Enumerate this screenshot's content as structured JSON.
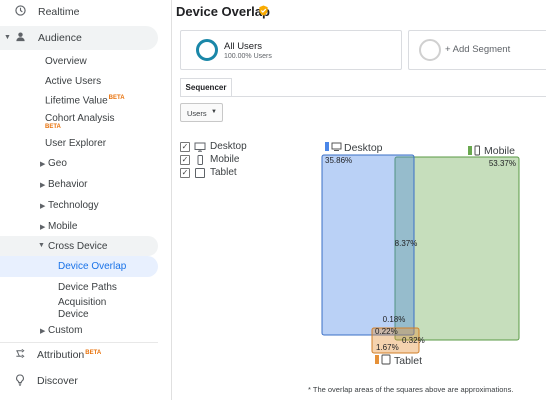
{
  "sidebar": {
    "items": [
      {
        "label": "Realtime",
        "icon": "clock-icon"
      },
      {
        "label": "Audience",
        "icon": "person-icon"
      },
      {
        "label": "Overview"
      },
      {
        "label": "Active Users"
      },
      {
        "label": "Lifetime Value",
        "badge": "BETA"
      },
      {
        "label": "Cohort Analysis",
        "badge": "BETA"
      },
      {
        "label": "User Explorer"
      },
      {
        "label": "Geo"
      },
      {
        "label": "Behavior"
      },
      {
        "label": "Technology"
      },
      {
        "label": "Mobile"
      },
      {
        "label": "Cross Device"
      },
      {
        "label": "Device Overlap"
      },
      {
        "label": "Device Paths"
      },
      {
        "label": "Acquisition Device"
      },
      {
        "label": "Custom"
      },
      {
        "label": "Attribution",
        "badge": "BETA",
        "icon": "attribution-icon"
      },
      {
        "label": "Discover",
        "icon": "lightbulb-icon"
      }
    ]
  },
  "header": {
    "title": "Device Overlap"
  },
  "segments": {
    "all_users": {
      "name": "All Users",
      "pct": "100.00% Users"
    },
    "add": {
      "label": "+ Add Segment"
    }
  },
  "tabs": {
    "sequencer": "Sequencer"
  },
  "metric_dropdown": {
    "value": "Users"
  },
  "devices": [
    {
      "label": "Desktop",
      "checked": true
    },
    {
      "label": "Mobile",
      "checked": true
    },
    {
      "label": "Tablet",
      "checked": true
    }
  ],
  "venn": {
    "desktop": {
      "label": "Desktop",
      "pct": "35.86%",
      "color": "#4a86e8"
    },
    "mobile": {
      "label": "Mobile",
      "pct": "53.37%",
      "color": "#6aa84f"
    },
    "tablet": {
      "label": "Tablet",
      "pct": "1.67%",
      "color": "#e69138"
    },
    "overlaps": {
      "desktop_mobile": "8.37%",
      "desktop_mobile_tablet": "0.18%",
      "desktop_tablet": "0.22%",
      "mobile_tablet": "0.32%"
    }
  },
  "footnote": "* The overlap areas of the squares above are approximations."
}
